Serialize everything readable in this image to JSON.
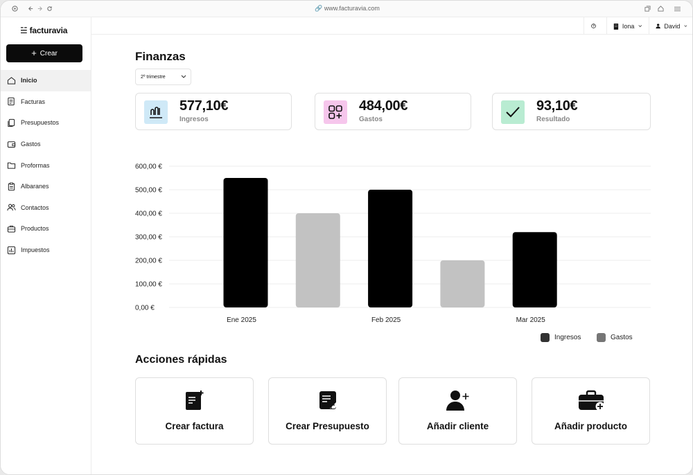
{
  "browser": {
    "url": "www.facturavia.com"
  },
  "app": {
    "name": "facturavia",
    "create_label": "Crear"
  },
  "sidebar": {
    "items": [
      {
        "label": "Inicio",
        "icon": "home-icon",
        "active": true
      },
      {
        "label": "Facturas",
        "icon": "invoice-icon"
      },
      {
        "label": "Presupuestos",
        "icon": "copy-icon"
      },
      {
        "label": "Gastos",
        "icon": "wallet-icon"
      },
      {
        "label": "Proformas",
        "icon": "folder-icon"
      },
      {
        "label": "Albaranes",
        "icon": "clipboard-icon"
      },
      {
        "label": "Contactos",
        "icon": "users-icon"
      },
      {
        "label": "Productos",
        "icon": "box-icon"
      },
      {
        "label": "Impuestos",
        "icon": "bar-chart-icon"
      }
    ]
  },
  "topbar": {
    "company": "Iona",
    "user": "David"
  },
  "main": {
    "title": "Finanzas",
    "period": "2º trimestre",
    "cards": [
      {
        "value": "577,10€",
        "label": "Ingresos",
        "icon": "bar-chart-icon",
        "color": "#cfe9f7"
      },
      {
        "value": "484,00€",
        "label": "Gastos",
        "icon": "grid-plus-icon",
        "color": "#f6c6ec"
      },
      {
        "value": "93,10€",
        "label": "Resultado",
        "icon": "check-icon",
        "color": "#b9ecd2"
      }
    ]
  },
  "chart_data": {
    "type": "bar",
    "categories": [
      "Ene 2025",
      "Feb 2025",
      "Mar 2025"
    ],
    "series": [
      {
        "name": "Ingresos",
        "values": [
          550,
          500,
          320
        ],
        "color": "#000000"
      },
      {
        "name": "Gastos",
        "values": [
          400,
          200,
          null
        ],
        "color": "#c2c2c2"
      }
    ],
    "y_ticks": [
      "0,00 €",
      "100,00 €",
      "200,00 €",
      "300,00 €",
      "400,00 €",
      "500,00 €",
      "600,00 €"
    ],
    "ylim": [
      0,
      600
    ],
    "legend_position": "bottom-right",
    "grid": true
  },
  "actions": {
    "title": "Acciones rápidas",
    "items": [
      {
        "label": "Crear factura",
        "icon": "new-invoice-icon"
      },
      {
        "label": "Crear Presupuesto",
        "icon": "new-quote-icon"
      },
      {
        "label": "Añadir cliente",
        "icon": "add-user-icon"
      },
      {
        "label": "Añadir producto",
        "icon": "add-product-icon"
      }
    ]
  }
}
